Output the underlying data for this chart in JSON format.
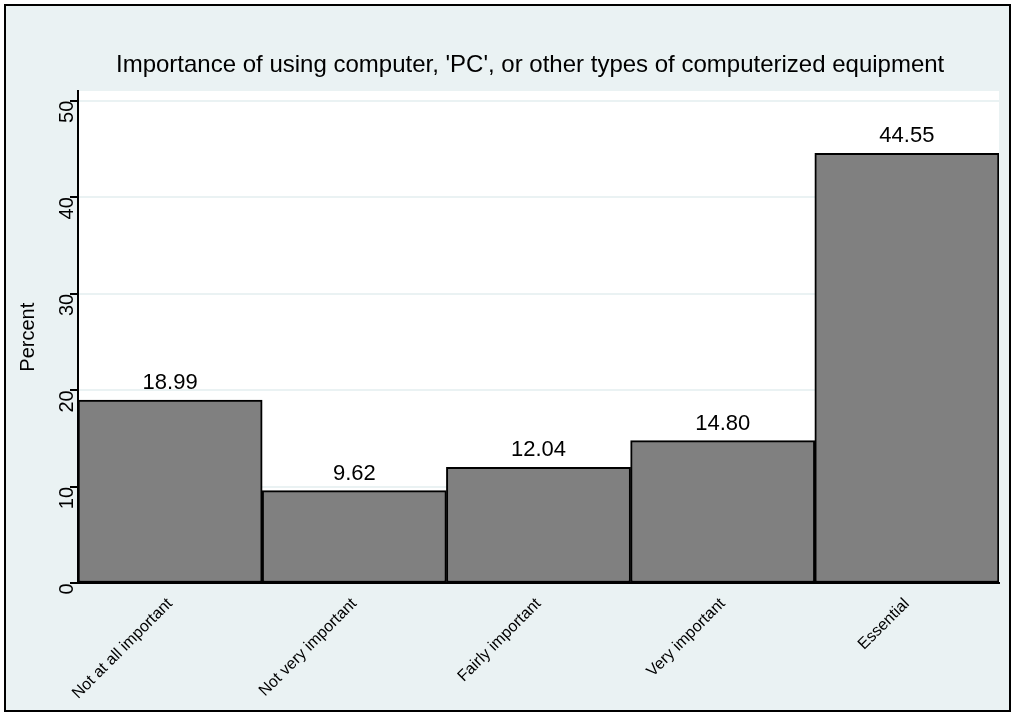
{
  "chart_data": {
    "type": "bar",
    "title": "Importance of using computer, 'PC', or other types of computerized equipment",
    "ylabel": "Percent",
    "categories": [
      "Not at all important",
      "Not very important",
      "Fairly important",
      "Very important",
      "Essential"
    ],
    "values": [
      18.99,
      9.62,
      12.04,
      14.8,
      44.55
    ],
    "value_labels": [
      "18.99",
      "9.62",
      "12.04",
      "14.80",
      "44.55"
    ],
    "color": "#808080",
    "ylim": [
      0,
      51
    ],
    "yticks": [
      0,
      10,
      20,
      30,
      40,
      50
    ],
    "grid": "y",
    "legend": false
  }
}
